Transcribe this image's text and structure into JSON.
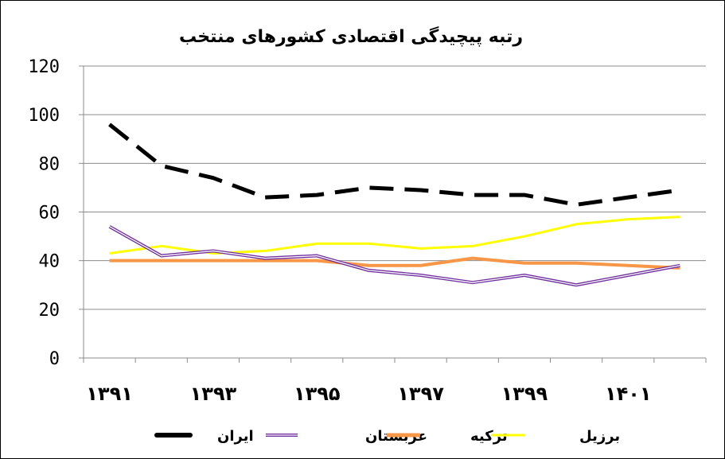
{
  "chart_data": {
    "type": "line",
    "title": "رتبه پیچیدگی اقتصادی کشورهای منتخب",
    "xlabel": "",
    "ylabel": "",
    "ylim": [
      0,
      120
    ],
    "yticks": [
      0,
      20,
      40,
      60,
      80,
      100,
      120
    ],
    "ytick_labels": [
      "0",
      "20",
      "40",
      "60",
      "80",
      "100",
      "120"
    ],
    "x": [
      1391,
      1392,
      1393,
      1394,
      1395,
      1396,
      1397,
      1398,
      1399,
      1400,
      1401,
      1402
    ],
    "xtick_values": [
      1391,
      1393,
      1395,
      1397,
      1399,
      1401
    ],
    "xtick_labels": [
      "۱۳۹۱",
      "۱۳۹۳",
      "۱۳۹۵",
      "۱۳۹۷",
      "۱۳۹۹",
      "۱۴۰۱"
    ],
    "grid": "horizontal",
    "legend_position": "bottom",
    "series": [
      {
        "name": "ایران",
        "color": "#000000",
        "style": "dashed",
        "values": [
          96,
          79,
          74,
          66,
          67,
          70,
          69,
          67,
          67,
          63,
          66,
          69
        ]
      },
      {
        "name": "عربستان",
        "color": "#7030A0",
        "style": "double",
        "values": [
          54,
          42,
          44,
          41,
          42,
          36,
          34,
          31,
          34,
          30,
          34,
          38
        ]
      },
      {
        "name": "ترکیه",
        "color": "#F79646",
        "style": "solid",
        "values": [
          40,
          40,
          40,
          40,
          40,
          38,
          38,
          41,
          39,
          39,
          38,
          37
        ]
      },
      {
        "name": "برزیل",
        "color": "#FFFF00",
        "style": "solid",
        "values": [
          43,
          46,
          43,
          44,
          47,
          47,
          45,
          46,
          50,
          55,
          57,
          58
        ]
      }
    ]
  }
}
